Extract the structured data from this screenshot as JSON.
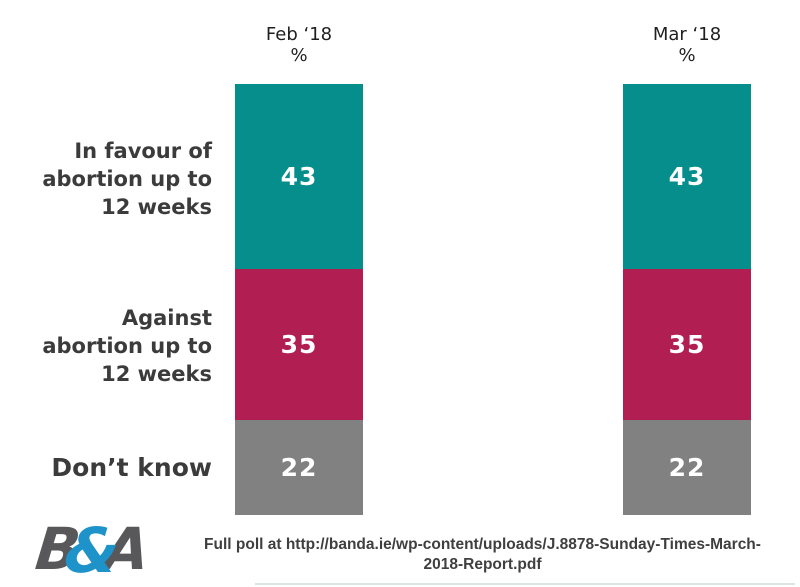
{
  "chart_data": {
    "type": "bar",
    "subtype": "stacked-column-pair",
    "categories": [
      "Feb ‘18",
      "Mar ‘18"
    ],
    "unit_label": "%",
    "row_labels": [
      {
        "name": "in-favour",
        "lines": [
          "In favour of",
          "abortion up to",
          "12 weeks"
        ]
      },
      {
        "name": "against",
        "lines": [
          "Against",
          "abortion up to",
          "12 weeks"
        ]
      },
      {
        "name": "dont-know",
        "lines": [
          "Don’t know"
        ]
      }
    ],
    "series": [
      {
        "name": "Feb ‘18",
        "values": [
          43,
          35,
          22
        ]
      },
      {
        "name": "Mar ‘18",
        "values": [
          43,
          35,
          22
        ]
      }
    ],
    "colors": [
      "#058E8C",
      "#B01E52",
      "#818181"
    ],
    "value_label_color": "#ffffff",
    "axis": "none",
    "legend": "none",
    "total_per_column": 100
  },
  "footer": {
    "line1": "Full poll at http://banda.ie/wp-content/uploads/J.8878-Sunday-Times-March-",
    "line2": "2018-Report.pdf"
  },
  "logo": {
    "letter_b": "B",
    "ampersand": "&",
    "letter_a": "A",
    "gray": "#58585a",
    "blue": "#1d93c9"
  }
}
